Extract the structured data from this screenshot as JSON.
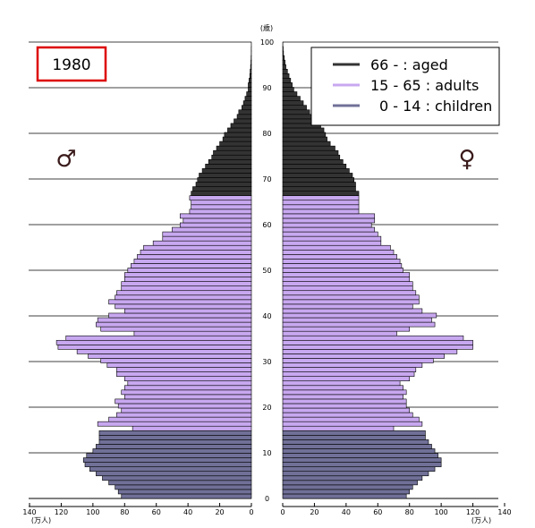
{
  "chart_data": {
    "type": "bar",
    "subtype": "population-pyramid",
    "title": "1980",
    "male_symbol": "♂",
    "female_symbol": "♀",
    "age_axis_unit": "(歳)",
    "population_unit": "(万人)",
    "age_ticks": [
      0,
      10,
      20,
      30,
      40,
      50,
      60,
      70,
      80,
      90,
      100
    ],
    "population_ticks": [
      0,
      20,
      40,
      60,
      80,
      100,
      120,
      140
    ],
    "xlim": [
      0,
      140
    ],
    "ylim": [
      0,
      100
    ],
    "colors": {
      "aged": "#333333",
      "adults": "#c8a8f0",
      "children": "#707098"
    },
    "legend": [
      {
        "label": "66 -       : aged",
        "group": "aged"
      },
      {
        "label": "15 - 65 : adults",
        "group": "adults"
      },
      {
        "label": "0 - 14 : children",
        "group": "children"
      }
    ],
    "group_boundaries": {
      "children_max_age": 14,
      "adults_max_age": 65
    },
    "ages": [
      0,
      1,
      2,
      3,
      4,
      5,
      6,
      7,
      8,
      9,
      10,
      11,
      12,
      13,
      14,
      15,
      16,
      17,
      18,
      19,
      20,
      21,
      22,
      23,
      24,
      25,
      26,
      27,
      28,
      29,
      30,
      31,
      32,
      33,
      34,
      35,
      36,
      37,
      38,
      39,
      40,
      41,
      42,
      43,
      44,
      45,
      46,
      47,
      48,
      49,
      50,
      51,
      52,
      53,
      54,
      55,
      56,
      57,
      57,
      58,
      59,
      60,
      61,
      62,
      63,
      64,
      65,
      66,
      67,
      68,
      69,
      70,
      71,
      72,
      73,
      74,
      75,
      76,
      77,
      78,
      79,
      80,
      81,
      82,
      83,
      84,
      85,
      86,
      87,
      88,
      89,
      90,
      91,
      92,
      93,
      94,
      95,
      96,
      97,
      98,
      99
    ],
    "male": [
      82,
      84,
      86,
      90,
      94,
      98,
      102,
      105,
      106,
      104,
      100,
      98,
      96,
      96,
      96,
      75,
      97,
      90,
      85,
      82,
      84,
      86,
      80,
      82,
      80,
      78,
      80,
      85,
      85,
      91,
      95,
      103,
      110,
      122,
      123,
      117,
      74,
      95,
      98,
      97,
      90,
      80,
      86,
      90,
      86,
      85,
      82,
      82,
      80,
      80,
      78,
      76,
      74,
      72,
      70,
      68,
      62,
      56,
      56,
      50,
      45,
      43,
      45,
      39,
      38,
      38,
      39,
      38,
      37,
      35,
      34,
      33,
      31,
      29,
      27,
      25,
      24,
      22,
      20,
      18,
      17,
      15,
      13,
      11,
      9,
      8,
      6,
      5,
      4,
      3,
      2,
      2,
      1.5,
      1,
      0.8,
      0.5,
      0.3,
      0.2,
      0.1,
      0.1,
      0.05
    ],
    "female": [
      78,
      80,
      82,
      85,
      88,
      92,
      96,
      100,
      100,
      98,
      96,
      94,
      92,
      90,
      90,
      70,
      88,
      86,
      82,
      80,
      78,
      78,
      76,
      78,
      76,
      74,
      80,
      83,
      84,
      88,
      95,
      102,
      110,
      120,
      120,
      114,
      72,
      80,
      96,
      94,
      97,
      88,
      82,
      86,
      86,
      84,
      82,
      82,
      80,
      80,
      76,
      75,
      74,
      72,
      70,
      68,
      62,
      62,
      60,
      58,
      56,
      58,
      58,
      48,
      48,
      48,
      48,
      48,
      46,
      46,
      45,
      44,
      42,
      40,
      38,
      36,
      35,
      33,
      30,
      28,
      27,
      26,
      24,
      22,
      20,
      17,
      15,
      13,
      11,
      9,
      7,
      6,
      5,
      4,
      3,
      2,
      1.5,
      1,
      0.5,
      0.3,
      0.1
    ]
  }
}
